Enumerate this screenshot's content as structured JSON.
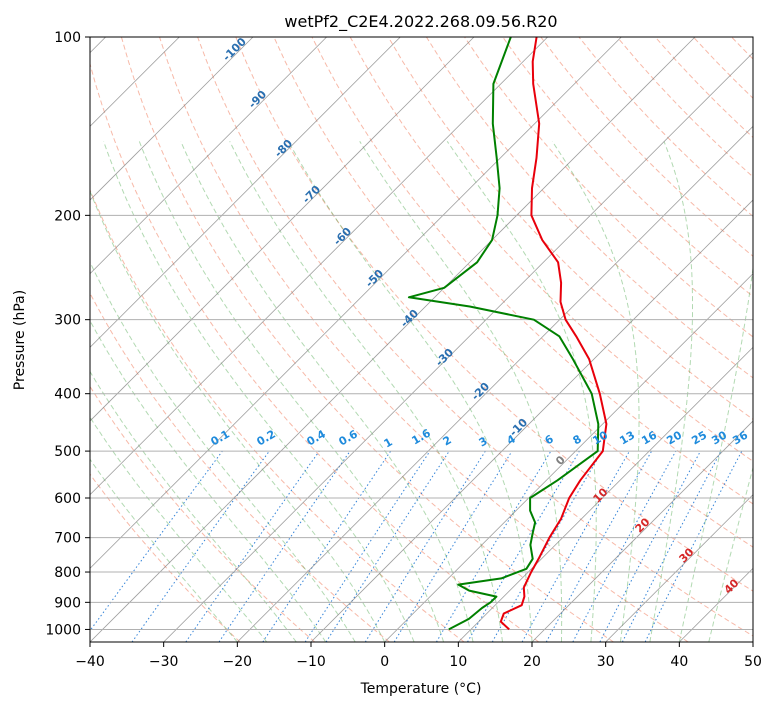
{
  "chart_data": {
    "type": "line",
    "title": "wetPf2_C2E4.2022.268.09.56.R20",
    "xlabel": "Temperature (°C)",
    "ylabel": "Pressure (hPa)",
    "xlim": [
      -40,
      50
    ],
    "ylim": [
      1050,
      100
    ],
    "y_scale": "log",
    "grid": true,
    "x_ticks": [
      "−40",
      "−30",
      "−20",
      "−10",
      "0",
      "10",
      "20",
      "30",
      "40",
      "50"
    ],
    "x_tick_values": [
      -40,
      -30,
      -20,
      -10,
      0,
      10,
      20,
      30,
      40,
      50
    ],
    "y_ticks": [
      "100",
      "200",
      "300",
      "400",
      "500",
      "600",
      "700",
      "800",
      "900",
      "1000"
    ],
    "y_tick_values": [
      100,
      200,
      300,
      400,
      500,
      600,
      700,
      800,
      900,
      1000
    ],
    "series": [
      {
        "color": "#e8000b",
        "points": [
          [
            1000,
            15.2
          ],
          [
            970,
            13.0
          ],
          [
            940,
            12.3
          ],
          [
            910,
            13.6
          ],
          [
            880,
            12.8
          ],
          [
            850,
            11.5
          ],
          [
            800,
            10.4
          ],
          [
            760,
            9.6
          ],
          [
            700,
            8.2
          ],
          [
            650,
            7.2
          ],
          [
            600,
            5.5
          ],
          [
            560,
            4.6
          ],
          [
            500,
            3.7
          ],
          [
            450,
            0.5
          ],
          [
            400,
            -4.5
          ],
          [
            350,
            -10.6
          ],
          [
            320,
            -15.5
          ],
          [
            300,
            -19.2
          ],
          [
            280,
            -22.3
          ],
          [
            260,
            -24.8
          ],
          [
            240,
            -28.0
          ],
          [
            220,
            -33.2
          ],
          [
            200,
            -38.0
          ],
          [
            180,
            -41.6
          ],
          [
            160,
            -45.1
          ],
          [
            140,
            -49.4
          ],
          [
            120,
            -55.6
          ],
          [
            110,
            -58.7
          ],
          [
            100,
            -61.5
          ]
        ]
      },
      {
        "color": "#008000",
        "points": [
          [
            1000,
            7.0
          ],
          [
            960,
            8.3
          ],
          [
            920,
            8.6
          ],
          [
            900,
            9.0
          ],
          [
            880,
            9.0
          ],
          [
            860,
            4.5
          ],
          [
            840,
            2.2
          ],
          [
            820,
            7.2
          ],
          [
            790,
            9.3
          ],
          [
            760,
            8.8
          ],
          [
            720,
            6.6
          ],
          [
            690,
            5.4
          ],
          [
            660,
            4.2
          ],
          [
            630,
            1.9
          ],
          [
            600,
            0.2
          ],
          [
            560,
            1.5
          ],
          [
            500,
            3.0
          ],
          [
            450,
            -0.6
          ],
          [
            400,
            -5.6
          ],
          [
            350,
            -12.8
          ],
          [
            320,
            -17.8
          ],
          [
            300,
            -23.5
          ],
          [
            285,
            -34.0
          ],
          [
            275,
            -43.5
          ],
          [
            265,
            -40.0
          ],
          [
            240,
            -39.0
          ],
          [
            220,
            -40.0
          ],
          [
            200,
            -42.6
          ],
          [
            180,
            -46.0
          ],
          [
            160,
            -50.5
          ],
          [
            140,
            -55.7
          ],
          [
            120,
            -61.0
          ],
          [
            100,
            -65.0
          ]
        ]
      }
    ],
    "dry_adiabat_labels": [
      "-100",
      "-90",
      "-80",
      "-70",
      "-60",
      "-50",
      "-40",
      "-30",
      "-20",
      "-10",
      "0"
    ],
    "mixing_ratio_labels": [
      "0.1",
      "0.2",
      "0.4",
      "0.6",
      "1",
      "1.6",
      "2",
      "3",
      "4",
      "6",
      "8",
      "10",
      "13",
      "16",
      "20",
      "25",
      "30",
      "36"
    ],
    "mixing_ratio_values": [
      0.1,
      0.2,
      0.4,
      0.6,
      1,
      1.6,
      2,
      3,
      4,
      6,
      8,
      10,
      13,
      16,
      20,
      25,
      30,
      36
    ],
    "moist_adiabat_labels": [
      "10",
      "20",
      "30",
      "40"
    ],
    "colors": {
      "temperature": "#e8000b",
      "dewpoint": "#008000",
      "dry_adiabats": "#f08060",
      "moist_adiabats": "#55aa55",
      "mixing_ratio": "#1f77d4",
      "isotherms": "#7f7f7f",
      "grid": "#b0b0b0"
    }
  }
}
